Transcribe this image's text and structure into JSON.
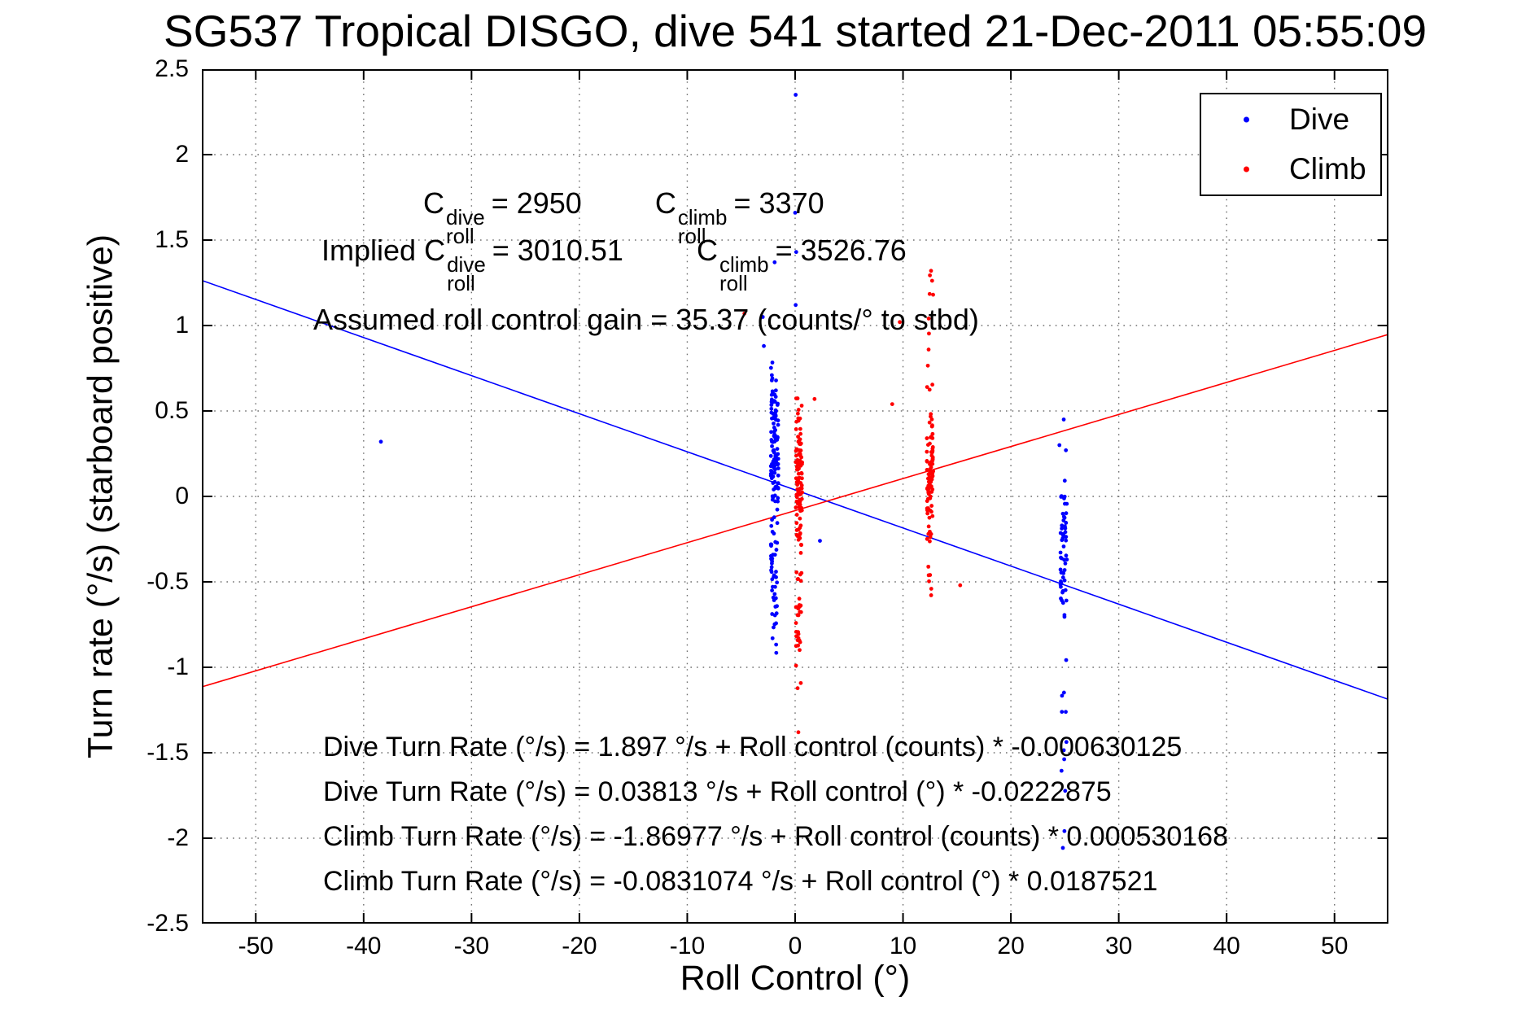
{
  "title": "SG537 Tropical DISGO, dive 541 started 21-Dec-2011 05:55:09",
  "axes": {
    "xlabel": "Roll Control (°)",
    "ylabel": "Turn rate (°/s) (starboard positive)",
    "xtick_labels": [
      "-50",
      "-40",
      "-30",
      "-20",
      "-10",
      "0",
      "10",
      "20",
      "30",
      "40",
      "50"
    ],
    "ytick_labels": [
      "-2.5",
      "-2",
      "-1.5",
      "-1",
      "-0.5",
      "0",
      "0.5",
      "1",
      "1.5",
      "2",
      "2.5"
    ]
  },
  "legend": {
    "items": [
      {
        "label": "Dive",
        "color": "#0000ff"
      },
      {
        "label": "Climb",
        "color": "#ff0000"
      }
    ]
  },
  "annotations": {
    "line1": {
      "c": "C",
      "sub": "roll",
      "sup_dive": "dive",
      "val_dive": "= 2950",
      "sup_climb": "climb",
      "val_climb": "= 3370"
    },
    "line2": {
      "prefix": "Implied",
      "c": "C",
      "sub": "roll",
      "sup_dive": "dive",
      "val_dive": "= 3010.51",
      "sup_climb": "climb",
      "val_climb": "= 3526.76"
    },
    "line3": "Assumed roll control gain = 35.37 (counts/° to stbd)",
    "equations": [
      "Dive Turn Rate (°/s) = 1.897 °/s + Roll control (counts) * -0.000630125",
      "Dive Turn Rate (°/s) = 0.03813 °/s + Roll control (°) * -0.0222875",
      "Climb Turn Rate (°/s) = -1.86977 °/s + Roll control (counts) * 0.000530168",
      "Climb Turn Rate (°/s) = -0.0831074 °/s + Roll control (°) * 0.0187521"
    ]
  },
  "colors": {
    "frame": "#000000",
    "grid": "#707070",
    "background": "#ffffff"
  },
  "chart_data": {
    "type": "scatter",
    "title": "SG537 Tropical DISGO, dive 541 started 21-Dec-2011 05:55:09",
    "xlabel": "Roll Control (°)",
    "ylabel": "Turn rate (°/s) (starboard positive)",
    "xlim": [
      -55,
      55
    ],
    "ylim": [
      -2.5,
      2.5
    ],
    "xticks": [
      -50,
      -40,
      -30,
      -20,
      -10,
      0,
      10,
      20,
      30,
      40,
      50
    ],
    "yticks": [
      -2.5,
      -2,
      -1.5,
      -1,
      -0.5,
      0,
      0.5,
      1,
      1.5,
      2,
      2.5
    ],
    "grid": "dotted",
    "legend_position": "top-right",
    "seed": 1234,
    "series": [
      {
        "name": "Dive",
        "color": "#0000ff",
        "clusters": [
          {
            "x": -1.9,
            "x_jitter": 0.35,
            "y_mean": 0.3,
            "y_sd": 0.22,
            "y_min": -0.15,
            "y_max": 0.97,
            "n": 115
          },
          {
            "x": -1.95,
            "x_jitter": 0.3,
            "y_mean": -0.3,
            "y_sd": 0.18,
            "y_min": -0.78,
            "y_max": -0.08,
            "n": 42
          },
          {
            "x": -1.9,
            "x_jitter": 0.2,
            "y_mean": -0.85,
            "y_sd": 0.1,
            "y_min": -0.97,
            "y_max": -0.72,
            "n": 5
          },
          {
            "x": 24.9,
            "x_jitter": 0.3,
            "y_mean": -0.32,
            "y_sd": 0.22,
            "y_min": -0.82,
            "y_max": 0.12,
            "n": 55
          },
          {
            "x": 24.9,
            "x_jitter": 0.25,
            "y_mean": -1.5,
            "y_sd": 0.45,
            "y_min": -2.25,
            "y_max": -0.85,
            "n": 12
          }
        ],
        "points": [
          [
            -38.4,
            0.32
          ],
          [
            0.05,
            2.35
          ],
          [
            0.0,
            1.66
          ],
          [
            0.1,
            1.43
          ],
          [
            -1.9,
            1.37
          ],
          [
            -3.0,
            1.05
          ],
          [
            0.05,
            1.12
          ],
          [
            -2.9,
            0.88
          ],
          [
            2.3,
            -0.26
          ],
          [
            24.9,
            0.45
          ],
          [
            24.5,
            0.3
          ],
          [
            25.1,
            0.27
          ]
        ]
      },
      {
        "name": "Climb",
        "color": "#ff0000",
        "clusters": [
          {
            "x": 0.35,
            "x_jitter": 0.3,
            "y_mean": 0.05,
            "y_sd": 0.24,
            "y_min": -0.5,
            "y_max": 0.62,
            "n": 105
          },
          {
            "x": 0.3,
            "x_jitter": 0.25,
            "y_mean": -0.75,
            "y_sd": 0.22,
            "y_min": -1.3,
            "y_max": -0.48,
            "n": 28
          },
          {
            "x": 12.5,
            "x_jitter": 0.3,
            "y_mean": 0.15,
            "y_sd": 0.25,
            "y_min": -0.38,
            "y_max": 0.78,
            "n": 88
          },
          {
            "x": 12.55,
            "x_jitter": 0.25,
            "y_mean": 1.0,
            "y_sd": 0.2,
            "y_min": 0.8,
            "y_max": 1.35,
            "n": 7
          },
          {
            "x": 12.5,
            "x_jitter": 0.2,
            "y_mean": -0.5,
            "y_sd": 0.1,
            "y_min": -0.65,
            "y_max": -0.38,
            "n": 6
          }
        ],
        "points": [
          [
            -4.7,
            1.07
          ],
          [
            9.7,
            1.02
          ],
          [
            9.0,
            0.54
          ],
          [
            15.3,
            -0.52
          ],
          [
            1.8,
            0.57
          ],
          [
            0.3,
            -1.38
          ],
          [
            12.6,
            1.32
          ]
        ]
      }
    ],
    "fit_lines": [
      {
        "series": "Dive",
        "color": "#0000ff",
        "intercept": 0.03813,
        "slope": -0.0222875,
        "equation": "y = 0.03813 - 0.0222875*x"
      },
      {
        "series": "Climb",
        "color": "#ff0000",
        "intercept": -0.0831074,
        "slope": 0.0187521,
        "equation": "y = -0.0831074 + 0.0187521*x"
      }
    ]
  }
}
